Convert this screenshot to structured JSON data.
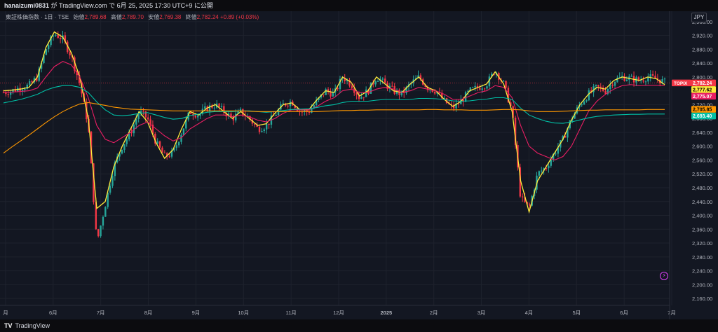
{
  "header": {
    "author": "hanaizumi0831",
    "text": "が TradingView.com で 6月 25, 2025 17:30 UTC+9 に公開"
  },
  "legend": {
    "symbol": "東証株価指数 · 1日 · TSE",
    "open_label": "始値",
    "open": "2,789.68",
    "high_label": "高値",
    "high": "2,789.70",
    "low_label": "安値",
    "low": "2,769.38",
    "close_label": "終値",
    "close": "2,782.24",
    "change": "+0.89 (+0.03%)"
  },
  "currency": "JPY",
  "footer": {
    "brand": "TradingView",
    "icon": "tradingview-logo-icon"
  },
  "colors": {
    "background": "#131722",
    "up": "#26a69a",
    "down": "#f23645",
    "ma_yellow": "#ffeb3b",
    "ma_pink": "#e91e63",
    "ma_teal": "#00bfa5",
    "ma_orange": "#ff9800"
  },
  "chart_data": {
    "type": "line",
    "title": "東証株価指数 · 1日 · TSE",
    "ylim": [
      2140,
      2990
    ],
    "yticks": [
      2160,
      2200,
      2240,
      2280,
      2320,
      2360,
      2400,
      2440,
      2480,
      2520,
      2560,
      2600,
      2640,
      2680,
      2720,
      2760,
      2800,
      2840,
      2880,
      2920,
      2960
    ],
    "ytick_labels": [
      "2,160.00",
      "2,200.00",
      "2,240.00",
      "2,280.00",
      "2,320.00",
      "2,360.00",
      "2,400.00",
      "2,440.00",
      "2,480.00",
      "2,520.00",
      "2,560.00",
      "2,600.00",
      "2,640.00",
      "2,680.00",
      "2,720.00",
      "2,760.00",
      "2,800.00",
      "2,840.00",
      "2,880.00",
      "2,920.00",
      "2,960.00"
    ],
    "x_axis_labels": [
      "月",
      "6月",
      "7月",
      "8月",
      "9月",
      "10月",
      "11月",
      "12月",
      "2025",
      "2月",
      "3月",
      "4月",
      "5月",
      "6月",
      "7月"
    ],
    "price_badges": [
      {
        "label": "TOPIX",
        "value": "2,782.24",
        "price": 2782.24,
        "color": "#f23645",
        "text": "#ffffff"
      },
      {
        "value": "2,777.62",
        "price": 2777.62,
        "color": "#ffeb3b",
        "text": "#000000"
      },
      {
        "value": "2,775.07",
        "price": 2775.07,
        "color": "#e91e63",
        "text": "#ffffff"
      },
      {
        "value": "2,705.85",
        "price": 2705.85,
        "color": "#ff9800",
        "text": "#000000"
      },
      {
        "value": "2,693.40",
        "price": 2693.4,
        "color": "#00bfa5",
        "text": "#ffffff"
      }
    ],
    "price_anchors": [
      2755,
      2760,
      2770,
      2775,
      2800,
      2880,
      2925,
      2910,
      2860,
      2780,
      2660,
      2320,
      2430,
      2540,
      2600,
      2640,
      2700,
      2680,
      2610,
      2570,
      2580,
      2640,
      2700,
      2690,
      2710,
      2720,
      2700,
      2680,
      2700,
      2680,
      2650,
      2660,
      2690,
      2720,
      2730,
      2700,
      2700,
      2730,
      2760,
      2750,
      2800,
      2780,
      2740,
      2760,
      2800,
      2780,
      2760,
      2750,
      2780,
      2800,
      2770,
      2760,
      2730,
      2710,
      2730,
      2760,
      2770,
      2780,
      2820,
      2780,
      2700,
      2450,
      2420,
      2520,
      2540,
      2580,
      2620,
      2680,
      2720,
      2750,
      2770,
      2760,
      2790,
      2800,
      2795,
      2790,
      2800,
      2795,
      2785
    ],
    "series": [
      {
        "values": [
          2760,
          2762,
          2765,
          2770,
          2800,
          2885,
          2930,
          2915,
          2870,
          2800,
          2680,
          2420,
          2440,
          2540,
          2600,
          2650,
          2700,
          2670,
          2610,
          2565,
          2590,
          2650,
          2700,
          2690,
          2710,
          2720,
          2700,
          2680,
          2700,
          2680,
          2660,
          2665,
          2695,
          2720,
          2725,
          2705,
          2705,
          2735,
          2760,
          2755,
          2800,
          2785,
          2745,
          2760,
          2800,
          2780,
          2760,
          2755,
          2780,
          2800,
          2770,
          2760,
          2735,
          2715,
          2730,
          2760,
          2770,
          2780,
          2815,
          2780,
          2700,
          2500,
          2410,
          2500,
          2540,
          2580,
          2620,
          2675,
          2720,
          2750,
          2770,
          2765,
          2790,
          2800,
          2795,
          2790,
          2800,
          2795,
          2778
        ]
      },
      {
        "values": [
          2755,
          2756,
          2758,
          2760,
          2768,
          2800,
          2830,
          2845,
          2835,
          2800,
          2740,
          2660,
          2620,
          2610,
          2625,
          2640,
          2660,
          2670,
          2650,
          2630,
          2615,
          2625,
          2650,
          2665,
          2680,
          2690,
          2690,
          2685,
          2690,
          2685,
          2675,
          2670,
          2680,
          2695,
          2705,
          2705,
          2705,
          2715,
          2730,
          2740,
          2760,
          2765,
          2755,
          2755,
          2765,
          2770,
          2765,
          2755,
          2760,
          2770,
          2765,
          2760,
          2750,
          2735,
          2735,
          2745,
          2755,
          2760,
          2775,
          2770,
          2740,
          2660,
          2600,
          2580,
          2570,
          2560,
          2570,
          2600,
          2650,
          2700,
          2730,
          2750,
          2765,
          2775,
          2778,
          2775,
          2776,
          2776,
          2775
        ]
      },
      {
        "values": [
          2725,
          2730,
          2735,
          2742,
          2750,
          2762,
          2770,
          2775,
          2775,
          2770,
          2755,
          2728,
          2705,
          2690,
          2688,
          2690,
          2695,
          2697,
          2690,
          2683,
          2678,
          2680,
          2688,
          2693,
          2698,
          2700,
          2700,
          2700,
          2702,
          2702,
          2700,
          2698,
          2700,
          2703,
          2706,
          2707,
          2708,
          2712,
          2717,
          2720,
          2726,
          2730,
          2730,
          2730,
          2733,
          2735,
          2735,
          2734,
          2735,
          2738,
          2738,
          2737,
          2735,
          2731,
          2730,
          2731,
          2734,
          2736,
          2740,
          2740,
          2735,
          2710,
          2690,
          2680,
          2672,
          2667,
          2666,
          2670,
          2676,
          2682,
          2686,
          2688,
          2690,
          2691,
          2692,
          2692,
          2693,
          2693,
          2693
        ]
      },
      {
        "values": [
          2580,
          2598,
          2615,
          2632,
          2650,
          2668,
          2685,
          2700,
          2712,
          2722,
          2726,
          2722,
          2718,
          2713,
          2710,
          2707,
          2706,
          2705,
          2704,
          2703,
          2702,
          2702,
          2702,
          2702,
          2702,
          2702,
          2702,
          2702,
          2702,
          2701,
          2700,
          2700,
          2700,
          2700,
          2700,
          2700,
          2700,
          2700,
          2701,
          2702,
          2703,
          2703,
          2704,
          2704,
          2705,
          2705,
          2705,
          2705,
          2705,
          2705,
          2706,
          2706,
          2705,
          2705,
          2705,
          2704,
          2704,
          2704,
          2705,
          2706,
          2706,
          2705,
          2702,
          2700,
          2700,
          2700,
          2701,
          2702,
          2703,
          2704,
          2704,
          2705,
          2705,
          2705,
          2705,
          2705,
          2706,
          2706,
          2706
        ]
      }
    ]
  }
}
